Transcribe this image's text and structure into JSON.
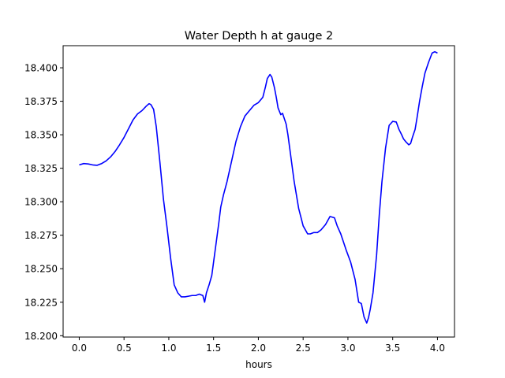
{
  "chart_data": {
    "type": "line",
    "title": "Water Depth h at gauge 2",
    "xlabel": "hours",
    "ylabel": "",
    "xlim": [
      -0.18,
      4.19
    ],
    "ylim": [
      18.199,
      18.4165
    ],
    "xticks": [
      0.0,
      0.5,
      1.0,
      1.5,
      2.0,
      2.5,
      3.0,
      3.5,
      4.0
    ],
    "xtick_labels": [
      "0.0",
      "0.5",
      "1.0",
      "1.5",
      "2.0",
      "2.5",
      "3.0",
      "3.5",
      "4.0"
    ],
    "yticks": [
      18.2,
      18.225,
      18.25,
      18.275,
      18.3,
      18.325,
      18.35,
      18.375,
      18.4
    ],
    "ytick_labels": [
      "18.200",
      "18.225",
      "18.250",
      "18.275",
      "18.300",
      "18.325",
      "18.350",
      "18.375",
      "18.400"
    ],
    "grid": false,
    "color": "#0000ff",
    "series": [
      {
        "x": [
          0.0,
          0.05,
          0.1,
          0.15,
          0.2,
          0.25,
          0.3,
          0.35,
          0.4,
          0.45,
          0.5,
          0.55,
          0.6,
          0.65,
          0.7,
          0.75,
          0.78,
          0.8,
          0.83,
          0.86,
          0.9,
          0.94,
          0.98,
          1.02,
          1.06,
          1.1,
          1.14,
          1.18,
          1.22,
          1.26,
          1.3,
          1.34,
          1.38,
          1.4,
          1.42,
          1.45,
          1.48,
          1.5,
          1.53,
          1.56,
          1.58,
          1.61,
          1.65,
          1.7,
          1.75,
          1.8,
          1.85,
          1.9,
          1.95,
          2.0,
          2.05,
          2.08,
          2.1,
          2.13,
          2.15,
          2.18,
          2.2,
          2.22,
          2.25,
          2.27,
          2.29,
          2.31,
          2.33,
          2.35,
          2.4,
          2.45,
          2.5,
          2.55,
          2.58,
          2.62,
          2.66,
          2.7,
          2.75,
          2.8,
          2.85,
          2.88,
          2.92,
          2.98,
          3.03,
          3.08,
          3.12,
          3.15,
          3.18,
          3.21,
          3.23,
          3.25,
          3.28,
          3.32,
          3.35,
          3.38,
          3.42,
          3.46,
          3.5,
          3.54,
          3.57,
          3.6,
          3.62,
          3.65,
          3.68,
          3.7,
          3.72,
          3.75,
          3.77,
          3.8,
          3.83,
          3.86,
          3.9,
          3.94,
          3.97,
          4.0
        ],
        "y": [
          18.3275,
          18.3285,
          18.3282,
          18.3275,
          18.3272,
          18.3285,
          18.3305,
          18.3335,
          18.3375,
          18.3425,
          18.348,
          18.3545,
          18.361,
          18.3655,
          18.368,
          18.3715,
          18.3732,
          18.3725,
          18.369,
          18.356,
          18.33,
          18.302,
          18.281,
          18.258,
          18.238,
          18.232,
          18.229,
          18.229,
          18.2295,
          18.23,
          18.23,
          18.231,
          18.23,
          18.225,
          18.232,
          18.238,
          18.245,
          18.255,
          18.27,
          18.285,
          18.296,
          18.305,
          18.315,
          18.33,
          18.345,
          18.356,
          18.364,
          18.368,
          18.372,
          18.374,
          18.378,
          18.386,
          18.392,
          18.395,
          18.393,
          18.385,
          18.378,
          18.37,
          18.365,
          18.366,
          18.362,
          18.358,
          18.35,
          18.34,
          18.315,
          18.295,
          18.282,
          18.276,
          18.276,
          18.277,
          18.277,
          18.279,
          18.283,
          18.289,
          18.288,
          18.282,
          18.276,
          18.264,
          18.255,
          18.242,
          18.225,
          18.224,
          18.214,
          18.2095,
          18.2135,
          18.22,
          18.232,
          18.26,
          18.29,
          18.315,
          18.34,
          18.357,
          18.36,
          18.3595,
          18.354,
          18.35,
          18.347,
          18.3445,
          18.3425,
          18.3435,
          18.348,
          18.354,
          18.362,
          18.375,
          18.386,
          18.396,
          18.404,
          18.411,
          18.412,
          18.411
        ]
      }
    ]
  }
}
